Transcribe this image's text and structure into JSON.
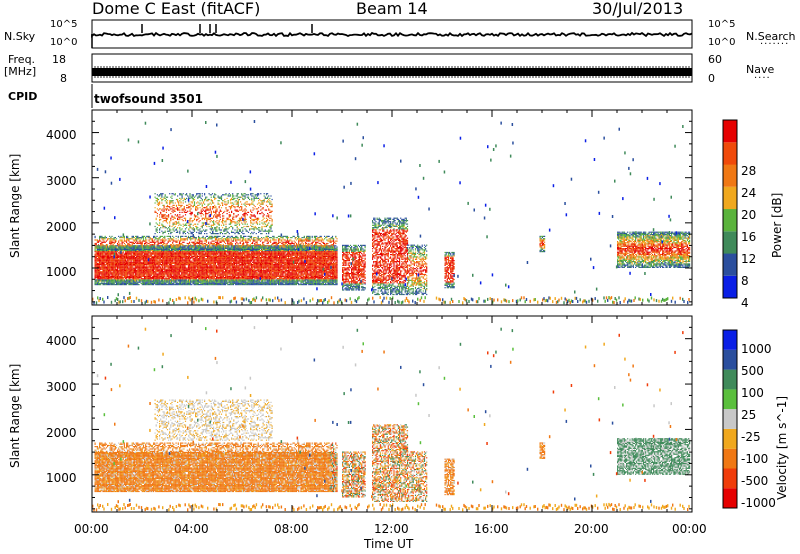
{
  "header": {
    "radar": "Dome C East (fitACF)",
    "beam": "Beam 14",
    "date": "30/Jul/2013"
  },
  "params": {
    "nsky_label": "N.Sky",
    "nsky_ticks": [
      "10^5",
      "10^0"
    ],
    "nsearch_label": "N.Search",
    "nsearch_ticks": [
      "10^5",
      "10^0"
    ],
    "freq_label": "Freq.",
    "freq_unit": "[MHz]",
    "freq_ticks": [
      "18",
      "8"
    ],
    "nave_label": "Nave",
    "nave_ticks": [
      "60",
      "0"
    ],
    "cpid_label": "CPID",
    "cpid_value": "twofsound 3501"
  },
  "colors": {
    "power": [
      "#0a1fe6",
      "#2b4f9e",
      "#3f8a5a",
      "#5ab33c",
      "#f0a81e",
      "#f07814",
      "#f04a0a",
      "#e60000"
    ],
    "velocity": [
      "#e60000",
      "#f03c0a",
      "#f07814",
      "#f0a81e",
      "#c8c8c8",
      "#5abf3c",
      "#3f8a5a",
      "#2b4f9e",
      "#0a1fe6"
    ]
  },
  "chart_data": [
    {
      "type": "heatmap",
      "name": "power",
      "xlabel": "",
      "ylabel": "Slant Range [km]",
      "x_range": [
        "00:00",
        "00:00"
      ],
      "ylim": [
        180,
        4500
      ],
      "y_ticks": [
        1000,
        2000,
        3000,
        4000
      ],
      "colorbar_label": "Power [dB]",
      "colorbar_ticks": [
        "4",
        "8",
        "12",
        "16",
        "20",
        "24",
        "28"
      ]
    },
    {
      "type": "heatmap",
      "name": "velocity",
      "xlabel": "Time UT",
      "ylabel": "Slant Range [km]",
      "x_ticks": [
        "00:00",
        "04:00",
        "08:00",
        "12:00",
        "16:00",
        "20:00",
        "00:00"
      ],
      "ylim": [
        180,
        4500
      ],
      "y_ticks": [
        1000,
        2000,
        3000,
        4000
      ],
      "colorbar_label": "Velocity [m s^-1]",
      "colorbar_ticks": [
        "1000",
        "500",
        "100",
        "25",
        "-25",
        "-100",
        "-500",
        "-1000"
      ]
    }
  ]
}
